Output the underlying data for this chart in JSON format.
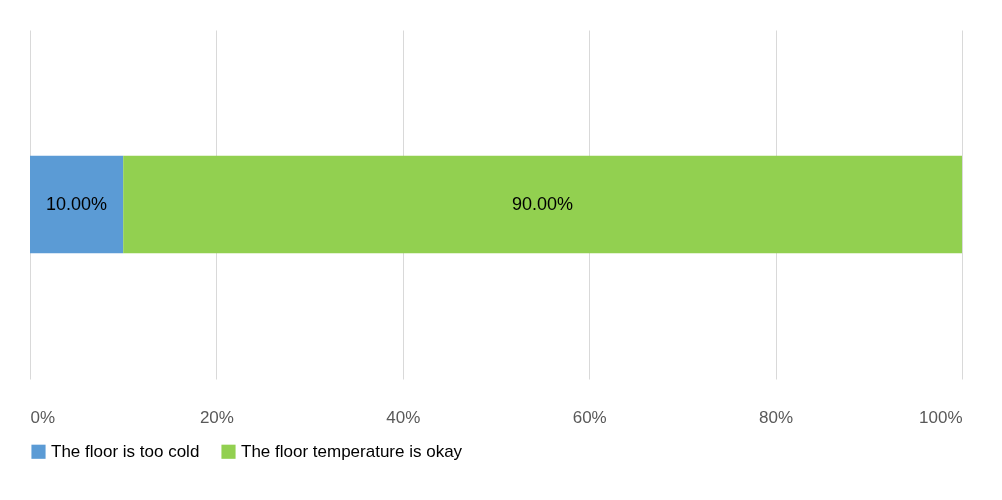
{
  "chart_data": {
    "type": "bar",
    "orientation": "horizontal",
    "stacked": true,
    "categories": [
      null
    ],
    "series": [
      {
        "name": "The floor is too cold",
        "color": "#5b9bd5",
        "values": [
          10
        ],
        "value_labels": [
          "10.00%"
        ]
      },
      {
        "name": "The floor temperature is okay",
        "color": "#92d050",
        "values": [
          90
        ],
        "value_labels": [
          "90.00%"
        ]
      }
    ],
    "xlim": [
      0,
      100
    ],
    "xticks": [
      {
        "value": 0,
        "label": "0%"
      },
      {
        "value": 20,
        "label": "20%"
      },
      {
        "value": 40,
        "label": "40%"
      },
      {
        "value": 60,
        "label": "60%"
      },
      {
        "value": 80,
        "label": "80%"
      },
      {
        "value": 100,
        "label": "100%"
      }
    ],
    "grid": "x",
    "legend": "bottom"
  }
}
